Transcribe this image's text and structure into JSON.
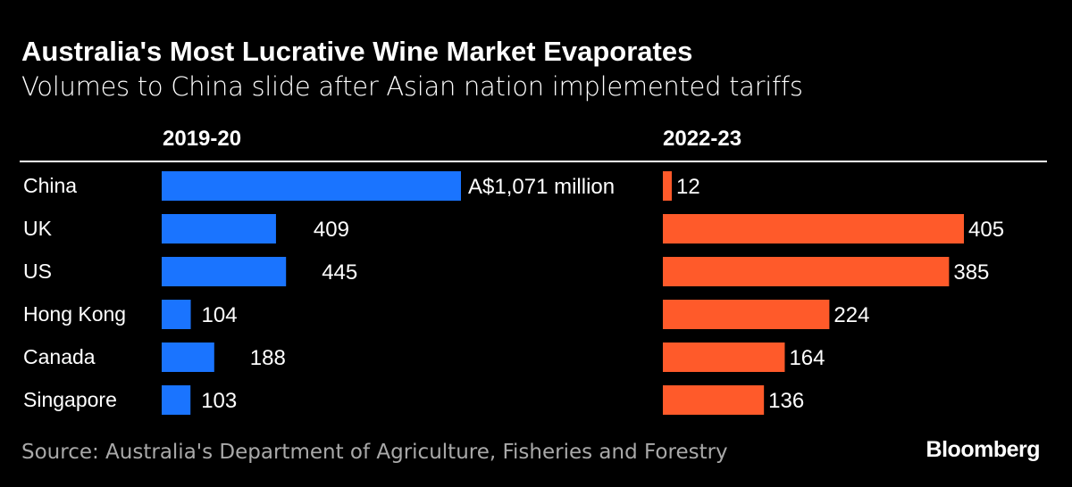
{
  "title": "Australia's Most Lucrative Wine Market Evaporates",
  "subtitle": "Volumes to China slide after Asian nation implemented tariffs",
  "source": "Source: Australia's Department of Agriculture, Fisheries and Forestry",
  "logo": "Bloomberg",
  "colors": {
    "left": "#1a74ff",
    "right": "#ff5a2a",
    "background": "#000000"
  },
  "chart_data": {
    "type": "bar",
    "orientation": "horizontal",
    "categories": [
      "China",
      "UK",
      "US",
      "Hong Kong",
      "Canada",
      "Singapore"
    ],
    "unit_label": "A$1,071 million",
    "series": [
      {
        "name": "2019-20",
        "values": [
          1071,
          409,
          445,
          104,
          188,
          103
        ],
        "color": "#1a74ff"
      },
      {
        "name": "2022-23",
        "values": [
          12,
          405,
          385,
          224,
          164,
          136
        ],
        "color": "#ff5a2a"
      }
    ],
    "value_labels": [
      [
        "A$1,071 million",
        "409",
        "445",
        "104",
        "188",
        "103"
      ],
      [
        "12",
        "405",
        "385",
        "224",
        "164",
        "136"
      ]
    ],
    "grid": false
  }
}
